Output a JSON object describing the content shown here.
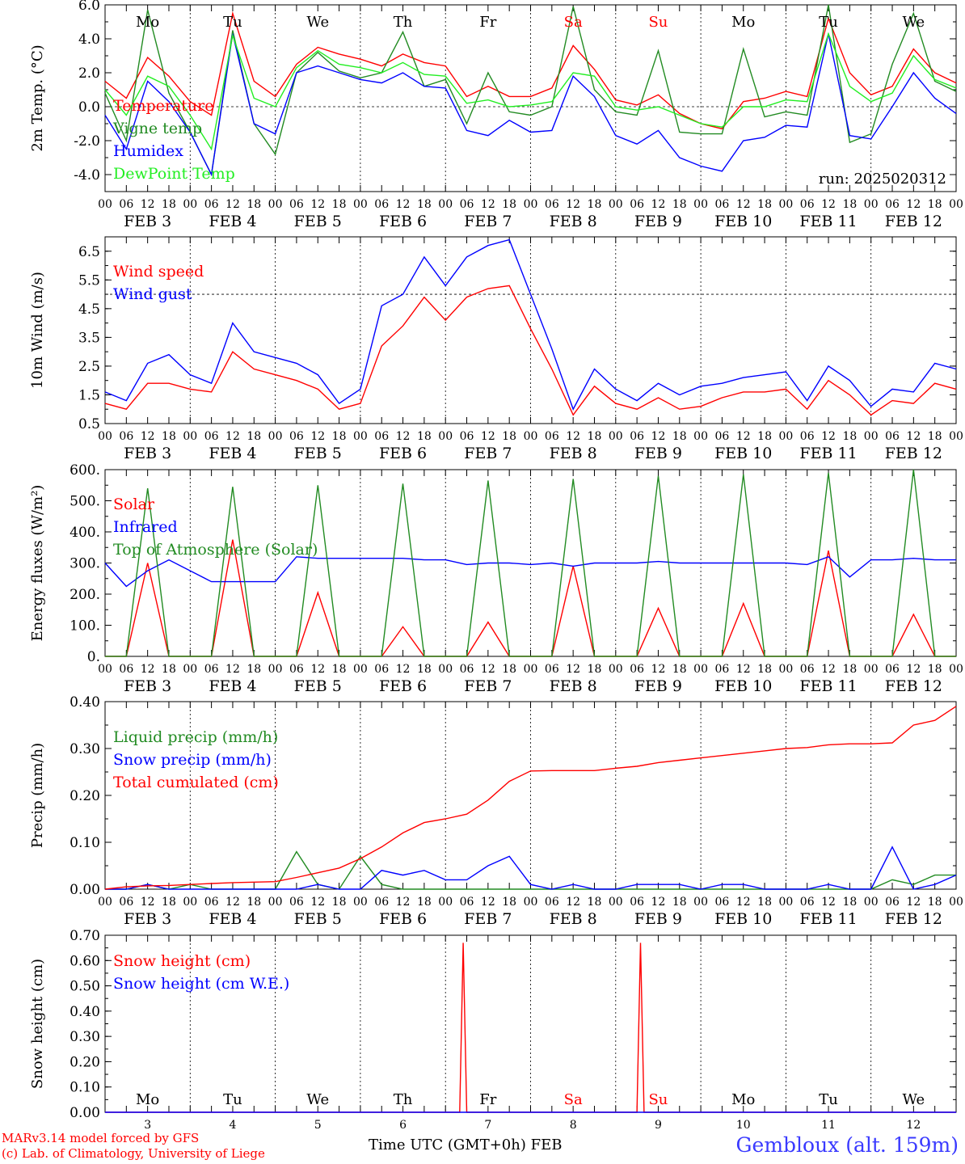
{
  "colors": {
    "red": "#ff0000",
    "dark_green": "#228b22",
    "blue": "#0000ff",
    "light_green": "#22ee22",
    "weekend_day": "#ff0000",
    "weekday": "#000000"
  },
  "timeline": {
    "day_names": [
      "Mo",
      "Tu",
      "We",
      "Th",
      "Fr",
      "Sa",
      "Su",
      "Mo",
      "Tu",
      "We"
    ],
    "weekend_flags": [
      false,
      false,
      false,
      false,
      false,
      true,
      true,
      false,
      false,
      false
    ],
    "date_labels": [
      "FEB  3",
      "FEB  4",
      "FEB  5",
      "FEB  6",
      "FEB  7",
      "FEB  8",
      "FEB  9",
      "FEB 10",
      "FEB 11",
      "FEB 12"
    ],
    "hour_ticks": [
      "00",
      "06",
      "12",
      "18"
    ],
    "last_tick": "00",
    "bottom_day_numbers": [
      "3",
      "4",
      "5",
      "6",
      "7",
      "8",
      "9",
      "10",
      "11",
      "12"
    ]
  },
  "footer": {
    "credit_line1": "MARv3.14 model forced by GFS",
    "credit_line2": "(c) Lab. of Climatology, University of Liege",
    "x_title": "Time UTC (GMT+0h) FEB",
    "station": "Gembloux (alt. 159m)"
  },
  "chart_data": [
    {
      "type": "line",
      "ylabel": "2m Temp. (°C)",
      "ylim": [
        -5.0,
        6.0
      ],
      "yticks": [
        "6.0",
        "4.0",
        "2.0",
        "0.0",
        "-2.0",
        "-4.0"
      ],
      "ytick_values": [
        6,
        4,
        2,
        0,
        -2,
        -4
      ],
      "annotation": "run: 2025020312",
      "reference_line": 0,
      "x_hours": [
        0,
        6,
        12,
        18,
        24,
        30,
        36,
        42,
        48,
        54,
        60,
        66,
        72,
        78,
        84,
        90,
        96,
        102,
        108,
        114,
        120,
        126,
        132,
        138,
        144,
        150,
        156,
        162,
        168,
        174,
        180,
        186,
        192,
        198,
        204,
        210,
        216,
        222,
        228,
        234,
        240
      ],
      "series": [
        {
          "name": "Temperature",
          "color": "red",
          "values": [
            1.5,
            0.5,
            2.9,
            1.8,
            0.3,
            -0.5,
            5.5,
            1.5,
            0.6,
            2.5,
            3.5,
            3.1,
            2.8,
            2.4,
            3.1,
            2.6,
            2.4,
            0.6,
            1.2,
            0.6,
            0.6,
            1.1,
            3.6,
            2.2,
            0.4,
            0.1,
            0.7,
            -0.4,
            -1.0,
            -1.3,
            0.3,
            0.5,
            0.9,
            0.6,
            5.2,
            2.0,
            0.7,
            1.2,
            3.4,
            2.0,
            1.4
          ]
        },
        {
          "name": "Vigne temp",
          "color": "dark_green",
          "values": [
            0.8,
            -2.0,
            5.7,
            0.8,
            -1.5,
            -4.0,
            4.5,
            -1.0,
            -2.8,
            2.0,
            3.2,
            2.1,
            1.7,
            2.0,
            4.4,
            1.2,
            1.6,
            -1.0,
            2.0,
            -0.3,
            -0.5,
            0.0,
            5.9,
            1.0,
            -0.3,
            -0.5,
            3.3,
            -1.5,
            -1.6,
            -1.6,
            3.4,
            -0.6,
            -0.3,
            -0.5,
            6.0,
            -2.1,
            -1.6,
            2.5,
            5.5,
            1.5,
            0.9
          ]
        },
        {
          "name": "Humidex",
          "color": "blue",
          "values": [
            -0.5,
            -2.5,
            1.5,
            0.3,
            -1.5,
            -4.0,
            4.3,
            -1.0,
            -1.6,
            2.0,
            2.4,
            2.0,
            1.6,
            1.4,
            2.0,
            1.2,
            1.1,
            -1.4,
            -1.7,
            -0.8,
            -1.5,
            -1.4,
            1.8,
            0.6,
            -1.7,
            -2.2,
            -1.4,
            -3.0,
            -3.5,
            -3.8,
            -2.0,
            -1.8,
            -1.1,
            -1.2,
            4.3,
            -1.7,
            -1.9,
            0.0,
            2.0,
            0.5,
            -0.4
          ]
        },
        {
          "name": "DewPoint Temp",
          "color": "light_green",
          "values": [
            1.0,
            -0.5,
            1.8,
            1.2,
            -0.5,
            -2.5,
            4.2,
            0.5,
            0.0,
            2.3,
            3.3,
            2.5,
            2.3,
            2.0,
            2.6,
            1.9,
            1.8,
            0.2,
            0.4,
            0.0,
            0.1,
            0.3,
            2.0,
            1.8,
            0.0,
            -0.2,
            0.0,
            -0.5,
            -1.0,
            -1.2,
            0.0,
            0.0,
            0.4,
            0.3,
            4.3,
            1.2,
            0.3,
            0.8,
            3.0,
            1.6,
            1.1
          ]
        }
      ]
    },
    {
      "type": "line",
      "ylabel": "10m Wind (m/s)",
      "ylim": [
        0.5,
        7.0
      ],
      "yticks": [
        "6.5",
        "5.5",
        "4.5",
        "3.5",
        "2.5",
        "1.5",
        "0.5"
      ],
      "ytick_values": [
        6.5,
        5.5,
        4.5,
        3.5,
        2.5,
        1.5,
        0.5
      ],
      "reference_line": 5.0,
      "x_hours": [
        0,
        6,
        12,
        18,
        24,
        30,
        36,
        42,
        48,
        54,
        60,
        66,
        72,
        78,
        84,
        90,
        96,
        102,
        108,
        114,
        120,
        126,
        132,
        138,
        144,
        150,
        156,
        162,
        168,
        174,
        180,
        186,
        192,
        198,
        204,
        210,
        216,
        222,
        228,
        234,
        240
      ],
      "series": [
        {
          "name": "Wind speed",
          "color": "red",
          "values": [
            1.2,
            1.0,
            1.9,
            1.9,
            1.7,
            1.6,
            3.0,
            2.4,
            2.2,
            2.0,
            1.7,
            1.0,
            1.2,
            3.2,
            3.9,
            4.9,
            4.1,
            4.9,
            5.2,
            5.3,
            3.8,
            2.4,
            0.8,
            1.8,
            1.2,
            1.0,
            1.4,
            1.0,
            1.1,
            1.4,
            1.6,
            1.6,
            1.7,
            1.0,
            2.0,
            1.5,
            0.8,
            1.3,
            1.2,
            1.9,
            1.7
          ]
        },
        {
          "name": "Wind gust",
          "color": "blue",
          "values": [
            1.6,
            1.3,
            2.6,
            2.9,
            2.2,
            1.9,
            4.0,
            3.0,
            2.8,
            2.6,
            2.2,
            1.2,
            1.7,
            4.6,
            5.0,
            6.3,
            5.3,
            6.3,
            6.7,
            6.9,
            5.0,
            3.1,
            1.0,
            2.4,
            1.7,
            1.3,
            1.9,
            1.5,
            1.8,
            1.9,
            2.1,
            2.2,
            2.3,
            1.3,
            2.5,
            2.0,
            1.1,
            1.7,
            1.6,
            2.6,
            2.4
          ]
        }
      ]
    },
    {
      "type": "line",
      "ylabel": "Energy fluxes (W/m²)",
      "ylim": [
        0,
        600
      ],
      "yticks": [
        "600.",
        "500.",
        "400.",
        "300.",
        "200.",
        "100.",
        "0."
      ],
      "ytick_values": [
        600,
        500,
        400,
        300,
        200,
        100,
        0
      ],
      "x_hours": [
        0,
        6,
        12,
        18,
        24,
        30,
        36,
        42,
        48,
        54,
        60,
        66,
        72,
        78,
        84,
        90,
        96,
        102,
        108,
        114,
        120,
        126,
        132,
        138,
        144,
        150,
        156,
        162,
        168,
        174,
        180,
        186,
        192,
        198,
        204,
        210,
        216,
        222,
        228,
        234,
        240
      ],
      "series": [
        {
          "name": "Solar",
          "color": "red",
          "values": [
            0,
            0,
            300,
            0,
            0,
            0,
            375,
            0,
            0,
            0,
            205,
            0,
            0,
            0,
            95,
            0,
            0,
            0,
            110,
            0,
            0,
            0,
            290,
            0,
            0,
            0,
            155,
            0,
            0,
            0,
            170,
            0,
            0,
            0,
            340,
            0,
            0,
            0,
            135,
            0,
            0
          ]
        },
        {
          "name": "Infrared",
          "color": "blue",
          "values": [
            300,
            225,
            275,
            310,
            275,
            240,
            240,
            240,
            240,
            320,
            315,
            315,
            315,
            315,
            315,
            310,
            310,
            295,
            300,
            300,
            295,
            300,
            290,
            300,
            300,
            300,
            305,
            300,
            300,
            300,
            300,
            300,
            300,
            295,
            320,
            255,
            310,
            310,
            315,
            310,
            310
          ]
        },
        {
          "name": "Top of Atmosphere (Solar)",
          "color": "dark_green",
          "values": [
            0,
            0,
            540,
            0,
            0,
            0,
            545,
            0,
            0,
            0,
            550,
            0,
            0,
            0,
            555,
            0,
            0,
            0,
            565,
            0,
            0,
            0,
            570,
            0,
            0,
            0,
            580,
            0,
            0,
            0,
            585,
            0,
            0,
            0,
            590,
            0,
            0,
            0,
            600,
            0,
            0
          ]
        }
      ]
    },
    {
      "type": "line",
      "ylabel": "Precip (mm/h)",
      "ylim": [
        0,
        0.4
      ],
      "yticks": [
        "0.40",
        "0.30",
        "0.20",
        "0.10",
        "0.00"
      ],
      "ytick_values": [
        0.4,
        0.3,
        0.2,
        0.1,
        0.0
      ],
      "x_hours": [
        0,
        6,
        12,
        18,
        24,
        30,
        36,
        42,
        48,
        54,
        60,
        66,
        72,
        78,
        84,
        90,
        96,
        102,
        108,
        114,
        120,
        126,
        132,
        138,
        144,
        150,
        156,
        162,
        168,
        174,
        180,
        186,
        192,
        198,
        204,
        210,
        216,
        222,
        228,
        234,
        240
      ],
      "series": [
        {
          "name": "Liquid precip (mm/h)",
          "color": "dark_green",
          "values": [
            0.0,
            0.0,
            0.01,
            0.0,
            0.01,
            0.0,
            0.0,
            0.0,
            0.0,
            0.08,
            0.01,
            0.0,
            0.07,
            0.01,
            0.0,
            0.0,
            0.0,
            0.0,
            0.0,
            0.0,
            0.0,
            0.0,
            0.0,
            0.0,
            0.0,
            0.0,
            0.0,
            0.0,
            0.0,
            0.0,
            0.0,
            0.0,
            0.0,
            0.0,
            0.0,
            0.0,
            0.0,
            0.02,
            0.01,
            0.03,
            0.03
          ]
        },
        {
          "name": "Snow precip (mm/h)",
          "color": "blue",
          "values": [
            0.0,
            0.0,
            0.01,
            0.0,
            0.0,
            0.0,
            0.0,
            0.0,
            0.0,
            0.0,
            0.01,
            0.0,
            0.0,
            0.04,
            0.03,
            0.04,
            0.02,
            0.02,
            0.05,
            0.07,
            0.01,
            0.0,
            0.01,
            0.0,
            0.0,
            0.01,
            0.01,
            0.01,
            0.0,
            0.01,
            0.01,
            0.0,
            0.0,
            0.0,
            0.01,
            0.0,
            0.0,
            0.09,
            0.0,
            0.01,
            0.03
          ]
        },
        {
          "name": "Total cumulated (cm)",
          "color": "red",
          "values": [
            0.0,
            0.005,
            0.007,
            0.008,
            0.01,
            0.012,
            0.014,
            0.015,
            0.016,
            0.025,
            0.035,
            0.045,
            0.065,
            0.09,
            0.12,
            0.142,
            0.15,
            0.16,
            0.19,
            0.23,
            0.252,
            0.253,
            0.253,
            0.253,
            0.258,
            0.262,
            0.27,
            0.275,
            0.28,
            0.285,
            0.29,
            0.295,
            0.3,
            0.302,
            0.308,
            0.31,
            0.31,
            0.312,
            0.35,
            0.36,
            0.39
          ]
        }
      ]
    },
    {
      "type": "line",
      "ylabel": "Snow height (cm)",
      "ylim": [
        0,
        0.7
      ],
      "yticks": [
        "0.70",
        "0.60",
        "0.50",
        "0.40",
        "0.30",
        "0.20",
        "0.10",
        "0.00"
      ],
      "ytick_values": [
        0.7,
        0.6,
        0.5,
        0.4,
        0.3,
        0.2,
        0.1,
        0.0
      ],
      "x_hours": [
        0,
        98,
        101,
        104,
        240
      ],
      "series": [
        {
          "name": "Snow height (cm)",
          "color": "red",
          "points": [
            [
              0,
              0
            ],
            [
              100,
              0
            ],
            [
              101,
              0.67
            ],
            [
              102,
              0
            ],
            [
              150,
              0
            ],
            [
              151,
              0.67
            ],
            [
              152,
              0
            ],
            [
              240,
              0
            ]
          ]
        },
        {
          "name": "Snow height (cm W.E.)",
          "color": "blue",
          "points": [
            [
              0,
              0
            ],
            [
              240,
              0
            ]
          ]
        }
      ]
    }
  ]
}
